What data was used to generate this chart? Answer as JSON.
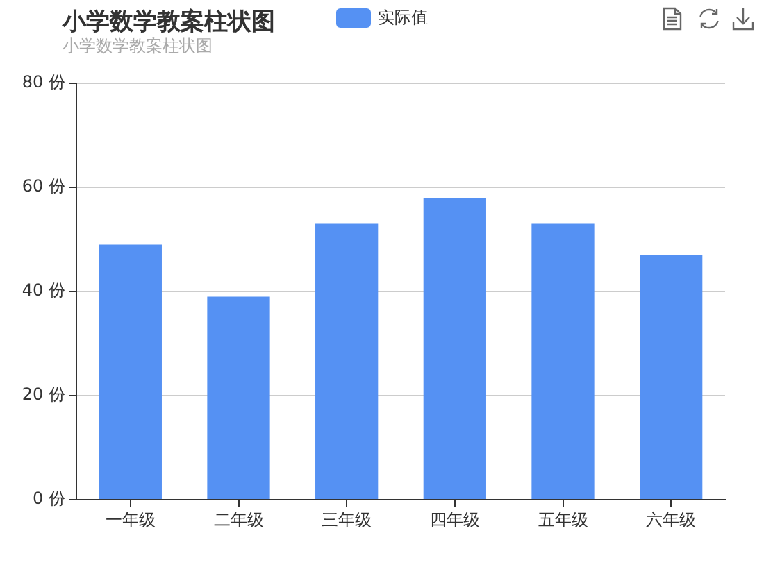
{
  "chart_data": {
    "type": "bar",
    "title": "小学数学教案柱状图",
    "subtitle": "小学数学教案柱状图",
    "categories": [
      "一年级",
      "二年级",
      "三年级",
      "四年级",
      "五年级",
      "六年级"
    ],
    "series": [
      {
        "name": "实际值",
        "color": "#5591f3",
        "values": [
          49,
          39,
          53,
          58,
          53,
          47
        ]
      }
    ],
    "ylim": [
      0,
      80
    ],
    "yticks": [
      {
        "value": 0,
        "label": "0 份"
      },
      {
        "value": 20,
        "label": "20 份"
      },
      {
        "value": 40,
        "label": "40 份"
      },
      {
        "value": 60,
        "label": "60 份"
      },
      {
        "value": 80,
        "label": "80 份"
      }
    ],
    "grid": "y",
    "legend": "top"
  }
}
